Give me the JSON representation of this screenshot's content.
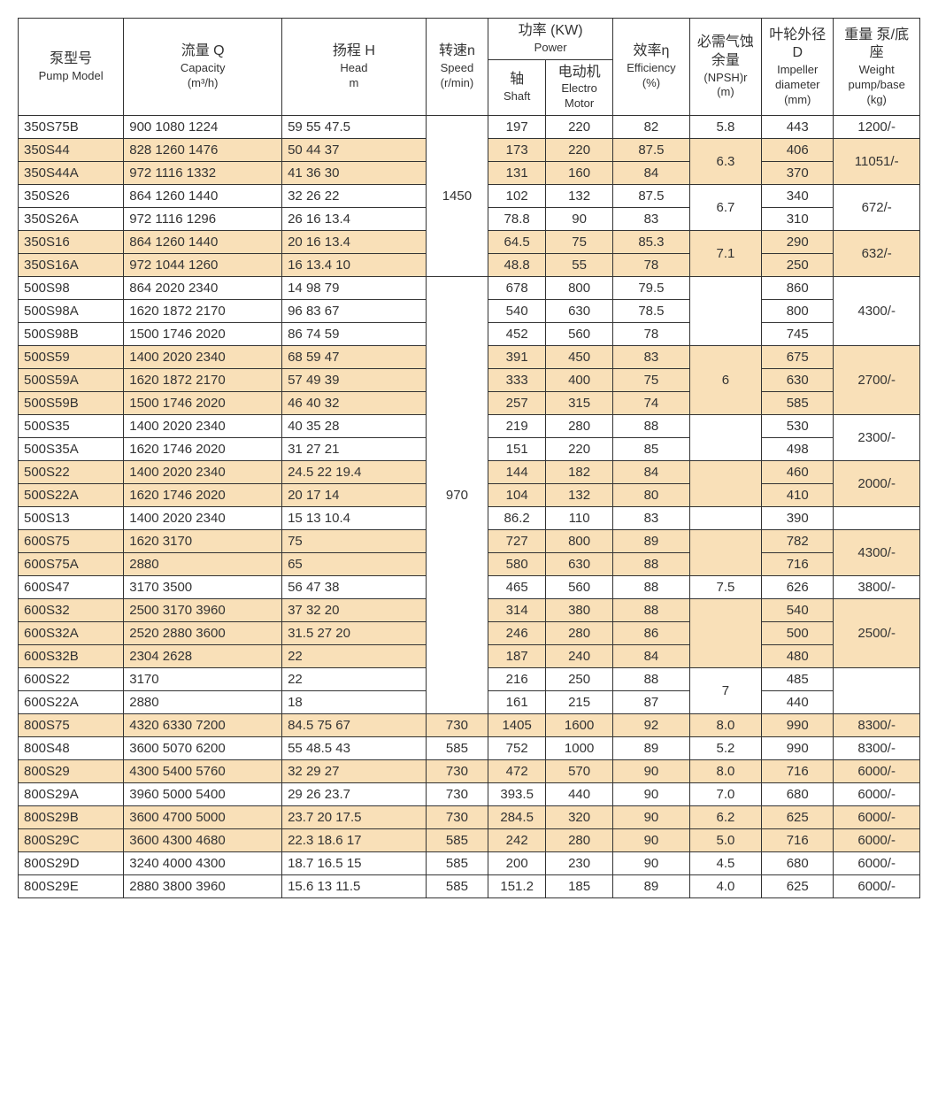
{
  "colors": {
    "shade": "#f9e0b8",
    "border": "#333333",
    "text": "#333333",
    "bg": "#ffffff"
  },
  "header": {
    "model_cn": "泵型号",
    "model_en": "Pump Model",
    "cap_cn": "流量 Q",
    "cap_en": "Capacity",
    "cap_unit": "(m³/h)",
    "head_cn": "扬程 H",
    "head_en": "Head",
    "head_unit": "m",
    "speed_cn": "转速n",
    "speed_en": "Speed",
    "speed_unit": "(r/min)",
    "power_cn": "功率 (KW)",
    "power_en": "Power",
    "shaft_cn": "轴",
    "shaft_en": "Shaft",
    "motor_cn": "电动机",
    "motor_en": "Electro Motor",
    "eff_cn": "效率η",
    "eff_en": "Efficiency",
    "eff_unit": "(%)",
    "npsh_cn": "必需气蚀余量",
    "npsh_en": "(NPSH)r",
    "npsh_unit": "(m)",
    "dia_cn": "叶轮外径 D",
    "dia_en": "Impeller diameter",
    "dia_unit": "(mm)",
    "wt_cn": "重量 泵/底座",
    "wt_en": "Weight pump/base",
    "wt_unit": "(kg)"
  },
  "r": {
    "0": {
      "model": "350S75B",
      "cap": "900 1080 1224",
      "head": "59   55    47.5",
      "shaft": "197",
      "motor": "220",
      "eff": "82",
      "npsh": "5.8",
      "dia": "443",
      "wt": "1200/-"
    },
    "1": {
      "model": "350S44",
      "cap": "828 1260 1476",
      "head": "50   44    37",
      "shaft": "173",
      "motor": "220",
      "eff": "87.5",
      "dia": "406"
    },
    "2": {
      "model": "350S44A",
      "cap": "972 1116 1332",
      "head": "41   36    30",
      "shaft": "131",
      "motor": "160",
      "eff": "84",
      "dia": "370"
    },
    "3": {
      "model": "350S26",
      "cap": "864 1260 1440",
      "head": "32   26    22",
      "shaft": "102",
      "motor": "132",
      "eff": "87.5",
      "dia": "340"
    },
    "4": {
      "model": "350S26A",
      "cap": "972 1116 1296",
      "head": "26   16    13.4",
      "shaft": "78.8",
      "motor": "90",
      "eff": "83",
      "dia": "310"
    },
    "5": {
      "model": "350S16",
      "cap": "864 1260 1440",
      "head": "20   16    13.4",
      "shaft": "64.5",
      "motor": "75",
      "eff": "85.3",
      "dia": "290"
    },
    "6": {
      "model": "350S16A",
      "cap": "972 1044 1260",
      "head": "16   13.4  10",
      "shaft": "48.8",
      "motor": "55",
      "eff": "78",
      "dia": "250"
    },
    "7": {
      "model": "500S98",
      "cap": "864 2020 2340",
      "head": "14   98    79",
      "shaft": "678",
      "motor": "800",
      "eff": "79.5",
      "dia": "860"
    },
    "8": {
      "model": "500S98A",
      "cap": "1620 1872 2170",
      "head": "96   83    67",
      "shaft": "540",
      "motor": "630",
      "eff": "78.5",
      "dia": "800"
    },
    "9": {
      "model": "500S98B",
      "cap": "1500 1746 2020",
      "head": "86   74    59",
      "shaft": "452",
      "motor": "560",
      "eff": "78",
      "dia": "745"
    },
    "10": {
      "model": "500S59",
      "cap": "1400 2020 2340",
      "head": "68   59    47",
      "shaft": "391",
      "motor": "450",
      "eff": "83",
      "dia": "675"
    },
    "11": {
      "model": "500S59A",
      "cap": "1620 1872 2170",
      "head": "57   49    39",
      "shaft": "333",
      "motor": "400",
      "eff": "75",
      "dia": "630"
    },
    "12": {
      "model": "500S59B",
      "cap": "1500 1746 2020",
      "head": "46   40    32",
      "shaft": "257",
      "motor": "315",
      "eff": "74",
      "dia": "585"
    },
    "13": {
      "model": "500S35",
      "cap": "1400 2020 2340",
      "head": "40   35    28",
      "shaft": "219",
      "motor": "280",
      "eff": "88",
      "dia": "530"
    },
    "14": {
      "model": "500S35A",
      "cap": "1620 1746 2020",
      "head": "31   27    21",
      "shaft": "151",
      "motor": "220",
      "eff": "85",
      "dia": "498"
    },
    "15": {
      "model": "500S22",
      "cap": "1400 2020 2340",
      "head": "24.5 22   19.4",
      "shaft": "144",
      "motor": "182",
      "eff": "84",
      "dia": "460"
    },
    "16": {
      "model": "500S22A",
      "cap": "1620 1746 2020",
      "head": "20   17    14",
      "shaft": "104",
      "motor": "132",
      "eff": "80",
      "dia": "410"
    },
    "17": {
      "model": "500S13",
      "cap": "1400 2020 2340",
      "head": "15   13    10.4",
      "shaft": "86.2",
      "motor": "110",
      "eff": "83",
      "dia": "390"
    },
    "18": {
      "model": "600S75",
      "cap": "1620 3170",
      "head": "75",
      "shaft": "727",
      "motor": "800",
      "eff": "89",
      "dia": "782"
    },
    "19": {
      "model": "600S75A",
      "cap": "2880",
      "head": "65",
      "shaft": "580",
      "motor": "630",
      "eff": "88",
      "dia": "716"
    },
    "20": {
      "model": "600S47",
      "cap": "3170 3500",
      "head": "56   47    38",
      "shaft": "465",
      "motor": "560",
      "eff": "88",
      "npsh": "7.5",
      "dia": "626",
      "wt": "3800/-"
    },
    "21": {
      "model": "600S32",
      "cap": "2500 3170 3960",
      "head": "37   32    20",
      "shaft": "314",
      "motor": "380",
      "eff": "88",
      "dia": "540"
    },
    "22": {
      "model": "600S32A",
      "cap": "2520 2880 3600",
      "head": "31.5  27   20",
      "shaft": "246",
      "motor": "280",
      "eff": "86",
      "dia": "500"
    },
    "23": {
      "model": "600S32B",
      "cap": "2304 2628",
      "head": "22",
      "shaft": "187",
      "motor": "240",
      "eff": "84",
      "dia": "480"
    },
    "24": {
      "model": "600S22",
      "cap": "3170",
      "head": "22",
      "shaft": "216",
      "motor": "250",
      "eff": "88",
      "dia": "485"
    },
    "25": {
      "model": "600S22A",
      "cap": "2880",
      "head": "18",
      "shaft": "161",
      "motor": "215",
      "eff": "87",
      "dia": "440"
    },
    "26": {
      "model": "800S75",
      "cap": "4320 6330 7200",
      "head": "84.5  75   67",
      "speed": "730",
      "shaft": "1405",
      "motor": "1600",
      "eff": "92",
      "npsh": "8.0",
      "dia": "990",
      "wt": "8300/-"
    },
    "27": {
      "model": "800S48",
      "cap": "3600 5070 6200",
      "head": "55  48.5   43",
      "speed": "585",
      "shaft": "752",
      "motor": "1000",
      "eff": "89",
      "npsh": "5.2",
      "dia": "990",
      "wt": "8300/-"
    },
    "28": {
      "model": "800S29",
      "cap": "4300 5400 5760",
      "head": "32   29    27",
      "speed": "730",
      "shaft": "472",
      "motor": "570",
      "eff": "90",
      "npsh": "8.0",
      "dia": "716",
      "wt": "6000/-"
    },
    "29": {
      "model": "800S29A",
      "cap": "3960 5000 5400",
      "head": "29   26   23.7",
      "speed": "730",
      "shaft": "393.5",
      "motor": "440",
      "eff": "90",
      "npsh": "7.0",
      "dia": "680",
      "wt": "6000/-"
    },
    "30": {
      "model": "800S29B",
      "cap": "3600 4700 5000",
      "head": "23.7  20  17.5",
      "speed": "730",
      "shaft": "284.5",
      "motor": "320",
      "eff": "90",
      "npsh": "6.2",
      "dia": "625",
      "wt": "6000/-"
    },
    "31": {
      "model": "800S29C",
      "cap": "3600 4300 4680",
      "head": "22.3 18.6 17",
      "speed": "585",
      "shaft": "242",
      "motor": "280",
      "eff": "90",
      "npsh": "5.0",
      "dia": "716",
      "wt": "6000/-"
    },
    "32": {
      "model": "800S29D",
      "cap": "3240 4000 4300",
      "head": "18.7 16.5 15",
      "speed": "585",
      "shaft": "200",
      "motor": "230",
      "eff": "90",
      "npsh": "4.5",
      "dia": "680",
      "wt": "6000/-"
    },
    "33": {
      "model": "800S29E",
      "cap": "2880 3800 3960",
      "head": "15.6 13  11.5",
      "speed": "585",
      "shaft": "151.2",
      "motor": "185",
      "eff": "89",
      "npsh": "4.0",
      "dia": "625",
      "wt": "6000/-"
    }
  },
  "merged": {
    "speed_1450": "1450",
    "speed_970": "970",
    "npsh_6_3": "6.3",
    "npsh_6_7": "6.7",
    "npsh_7_1": "7.1",
    "npsh_6": "6",
    "npsh_7": "7",
    "wt_11051": "11051/-",
    "wt_672": "672/-",
    "wt_632": "632/-",
    "wt_4300a": "4300/-",
    "wt_2700": "2700/-",
    "wt_2300": "2300/-",
    "wt_2000": "2000/-",
    "wt_4300b": "4300/-",
    "wt_2500": "2500/-"
  }
}
